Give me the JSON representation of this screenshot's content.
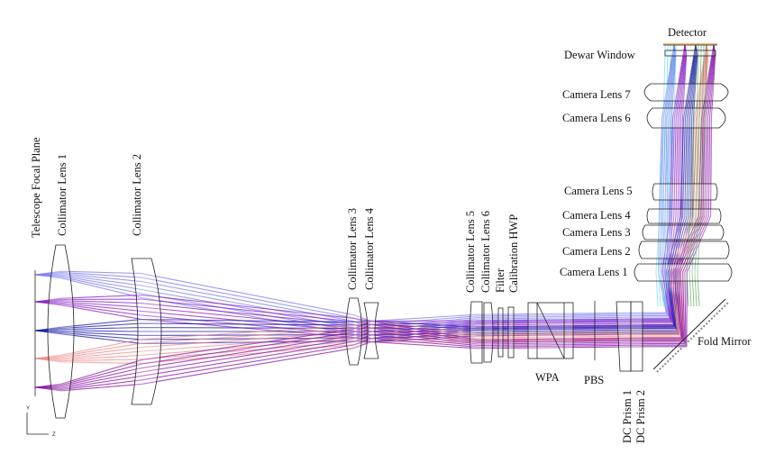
{
  "labels": {
    "telescope_focal_plane": "Telescope Focal Plane",
    "collimator_lens_1": "Collimator Lens 1",
    "collimator_lens_2": "Collimator Lens 2",
    "collimator_lens_3": "Collimator Lens 3",
    "collimator_lens_4": "Collimator Lens 4",
    "collimator_lens_5": "Collimator Lens 5",
    "collimator_lens_6": "Collimator Lens 6",
    "filter": "Filter",
    "calibration_hwp": "Calibration HWP",
    "wpa": "WPA",
    "pbs": "PBS",
    "dc_prism_1": "DC Prism 1",
    "dc_prism_2": "DC Prism 2",
    "fold_mirror": "Fold Mirror",
    "camera_lens_1": "Camera Lens 1",
    "camera_lens_2": "Camera Lens 2",
    "camera_lens_3": "Camera Lens 3",
    "camera_lens_4": "Camera Lens 4",
    "camera_lens_5": "Camera Lens 5",
    "camera_lens_6": "Camera Lens 6",
    "camera_lens_7": "Camera Lens 7",
    "dewar_window": "Dewar Window",
    "detector": "Detector",
    "axis_y": "Y",
    "axis_z": "Z"
  },
  "colors": {
    "field_1": "#7b7bf0",
    "field_2": "#8a1fc8",
    "field_3": "#1a1aa8",
    "field_4": "#f08a8a",
    "field_5": "#8a14a6",
    "camera_extra_1": "#4fd6ee",
    "camera_extra_2": "#3aa04a",
    "detector_tint": "#f5b56a"
  }
}
